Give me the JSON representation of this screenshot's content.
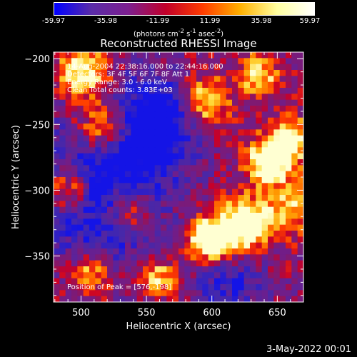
{
  "colorbar": {
    "ticks": [
      "-59.97",
      "-35.98",
      "-11.99",
      "11.99",
      "35.98",
      "59.97"
    ],
    "units_main": "(photons cm",
    "units_sup1": "-2",
    "units_mid1": " s",
    "units_sup2": "-1",
    "units_mid2": " asec",
    "units_sup3": "-2",
    "units_end": ")",
    "colors": [
      "#0000ff",
      "#5a2ca8",
      "#7d1f8f",
      "#c2002a",
      "#ff3c00",
      "#ffb000",
      "#ffffa0",
      "#ffffff"
    ]
  },
  "chart_data": {
    "type": "heatmap",
    "title": "Reconstructed RHESSI Image",
    "xlabel": "Heliocentric X (arcsec)",
    "ylabel": "Heliocentric Y (arcsec)",
    "xlim": [
      479,
      670
    ],
    "ylim": [
      -385,
      -195
    ],
    "x_ticks": [
      500,
      550,
      600,
      650
    ],
    "y_ticks": [
      -200,
      -250,
      -300,
      -350
    ],
    "value_range": [
      -59.97,
      59.97
    ],
    "peak_position": [
      576,
      -198
    ],
    "info_lines": [
      "14-Aug-2004 22:38:16.000 to 22:44:16.000",
      "Detectors: 3F 4F 5F 6F 7F 8F  Att 1",
      "Energy Range: 3.0 - 6.0 keV",
      "Clean    Total counts: 3.83E+03"
    ],
    "peak_label": "Position of Peak = [576,-198]"
  },
  "footer": {
    "date": "3-May-2022 00:01"
  }
}
